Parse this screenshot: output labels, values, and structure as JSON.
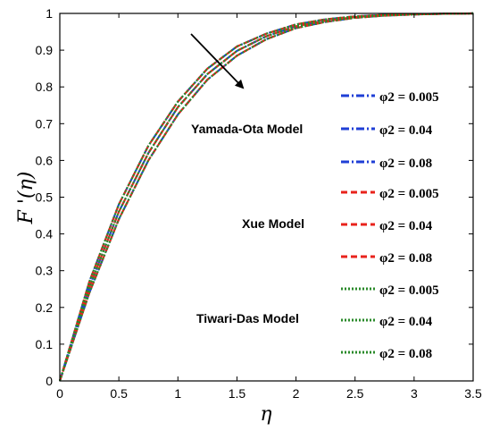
{
  "chart_data": {
    "type": "line",
    "xlabel": "η",
    "ylabel": "F '(η)",
    "xlim": [
      0,
      3.5
    ],
    "ylim": [
      0,
      1
    ],
    "xticks": [
      "0",
      "0.5",
      "1",
      "1.5",
      "2",
      "2.5",
      "3",
      "3.5"
    ],
    "yticks": [
      "0",
      "0.1",
      "0.2",
      "0.3",
      "0.4",
      "0.5",
      "0.6",
      "0.7",
      "0.8",
      "0.9",
      "1"
    ],
    "grid": false,
    "legend_position": "right",
    "annotation": "arrow indicating increasing φ2",
    "groups": [
      {
        "label": "Yamada-Ota Model",
        "color": "#1f3fd6",
        "style": "dash-dot"
      },
      {
        "label": "Xue Model",
        "color": "#e8231c",
        "style": "dashed"
      },
      {
        "label": "Tiwari-Das Model",
        "color": "#2a8a2a",
        "style": "dotted"
      }
    ],
    "series": [
      {
        "name": "φ2 = 0.005",
        "group": 0,
        "x": [
          0,
          0.25,
          0.5,
          0.75,
          1.0,
          1.25,
          1.5,
          1.75,
          2.0,
          2.25,
          2.5,
          2.75,
          3.0,
          3.25,
          3.5
        ],
        "y": [
          0,
          0.27,
          0.48,
          0.64,
          0.76,
          0.85,
          0.91,
          0.945,
          0.97,
          0.984,
          0.992,
          0.996,
          0.998,
          0.999,
          1.0
        ]
      },
      {
        "name": "φ2 = 0.04",
        "group": 0,
        "x": [
          0,
          0.25,
          0.5,
          0.75,
          1.0,
          1.25,
          1.5,
          1.75,
          2.0,
          2.25,
          2.5,
          2.75,
          3.0,
          3.25,
          3.5
        ],
        "y": [
          0,
          0.255,
          0.46,
          0.62,
          0.745,
          0.835,
          0.898,
          0.938,
          0.965,
          0.98,
          0.99,
          0.995,
          0.998,
          0.999,
          1.0
        ]
      },
      {
        "name": "φ2 = 0.08",
        "group": 0,
        "x": [
          0,
          0.25,
          0.5,
          0.75,
          1.0,
          1.25,
          1.5,
          1.75,
          2.0,
          2.25,
          2.5,
          2.75,
          3.0,
          3.25,
          3.5
        ],
        "y": [
          0,
          0.24,
          0.44,
          0.6,
          0.725,
          0.82,
          0.885,
          0.93,
          0.96,
          0.977,
          0.988,
          0.994,
          0.997,
          0.999,
          1.0
        ]
      },
      {
        "name": "φ2 = 0.005",
        "group": 1,
        "x": [
          0,
          0.25,
          0.5,
          0.75,
          1.0,
          1.25,
          1.5,
          1.75,
          2.0,
          2.25,
          2.5,
          2.75,
          3.0,
          3.25,
          3.5
        ],
        "y": [
          0,
          0.27,
          0.48,
          0.64,
          0.76,
          0.85,
          0.91,
          0.945,
          0.97,
          0.984,
          0.992,
          0.996,
          0.998,
          0.999,
          1.0
        ]
      },
      {
        "name": "φ2 = 0.04",
        "group": 1,
        "x": [
          0,
          0.25,
          0.5,
          0.75,
          1.0,
          1.25,
          1.5,
          1.75,
          2.0,
          2.25,
          2.5,
          2.75,
          3.0,
          3.25,
          3.5
        ],
        "y": [
          0,
          0.255,
          0.46,
          0.62,
          0.745,
          0.835,
          0.898,
          0.938,
          0.965,
          0.98,
          0.99,
          0.995,
          0.998,
          0.999,
          1.0
        ]
      },
      {
        "name": "φ2 = 0.08",
        "group": 1,
        "x": [
          0,
          0.25,
          0.5,
          0.75,
          1.0,
          1.25,
          1.5,
          1.75,
          2.0,
          2.25,
          2.5,
          2.75,
          3.0,
          3.25,
          3.5
        ],
        "y": [
          0,
          0.24,
          0.44,
          0.6,
          0.725,
          0.82,
          0.885,
          0.93,
          0.96,
          0.977,
          0.988,
          0.994,
          0.997,
          0.999,
          1.0
        ]
      },
      {
        "name": "φ2 = 0.005",
        "group": 2,
        "x": [
          0,
          0.25,
          0.5,
          0.75,
          1.0,
          1.25,
          1.5,
          1.75,
          2.0,
          2.25,
          2.5,
          2.75,
          3.0,
          3.25,
          3.5
        ],
        "y": [
          0,
          0.27,
          0.48,
          0.64,
          0.76,
          0.85,
          0.91,
          0.945,
          0.97,
          0.984,
          0.992,
          0.996,
          0.998,
          0.999,
          1.0
        ]
      },
      {
        "name": "φ2 = 0.04",
        "group": 2,
        "x": [
          0,
          0.25,
          0.5,
          0.75,
          1.0,
          1.25,
          1.5,
          1.75,
          2.0,
          2.25,
          2.5,
          2.75,
          3.0,
          3.25,
          3.5
        ],
        "y": [
          0,
          0.255,
          0.46,
          0.62,
          0.745,
          0.835,
          0.898,
          0.938,
          0.965,
          0.98,
          0.99,
          0.995,
          0.998,
          0.999,
          1.0
        ]
      },
      {
        "name": "φ2 = 0.08",
        "group": 2,
        "x": [
          0,
          0.25,
          0.5,
          0.75,
          1.0,
          1.25,
          1.5,
          1.75,
          2.0,
          2.25,
          2.5,
          2.75,
          3.0,
          3.25,
          3.5
        ],
        "y": [
          0,
          0.24,
          0.44,
          0.6,
          0.725,
          0.82,
          0.885,
          0.93,
          0.96,
          0.977,
          0.988,
          0.994,
          0.997,
          0.999,
          1.0
        ]
      }
    ]
  }
}
